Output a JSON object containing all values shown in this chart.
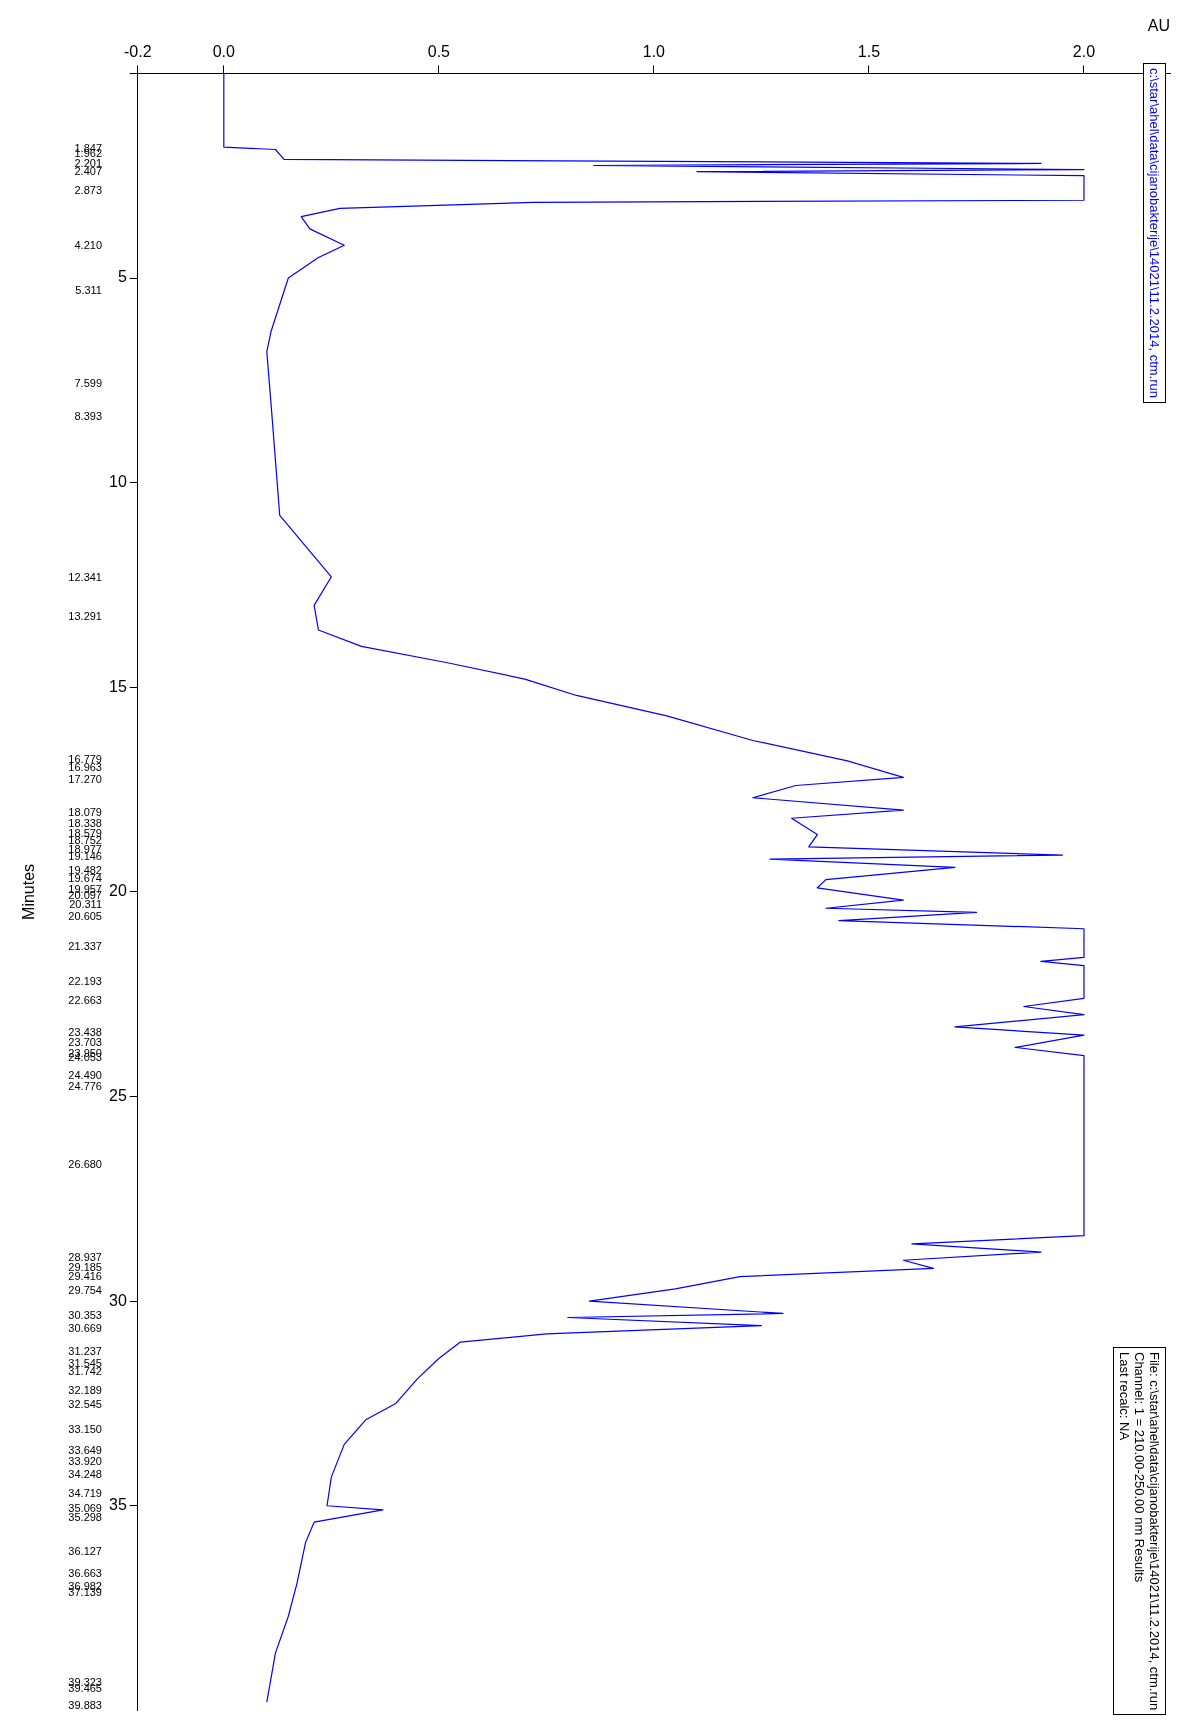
{
  "chart_data": {
    "type": "line",
    "xlabel": "AU",
    "y2label": "Minutes",
    "color": "#0000ff",
    "values": [
      0,
      1.8,
      1.86,
      2.1,
      2.2,
      2.25,
      2.35,
      2.4,
      2.5,
      3.1,
      3.15,
      3.3,
      3.5,
      3.8,
      4.2,
      4.5,
      5.0,
      6.3,
      6.8,
      8.1,
      10.8,
      11.3,
      12.3,
      13.0,
      13.6,
      14.0,
      14.4,
      14.8,
      15.2,
      15.7,
      16.3,
      16.8,
      17.2,
      17.4,
      17.7,
      18.0,
      18.2,
      18.6,
      18.9,
      19.1,
      19.2,
      19.4,
      19.7,
      19.9,
      20.2,
      20.4,
      20.5,
      20.7,
      20.9,
      21.6,
      21.7,
      21.8,
      22.6,
      22.8,
      23.0,
      23.3,
      23.5,
      23.8,
      24.0,
      28.4,
      28.6,
      28.8,
      29.0,
      29.2,
      29.4,
      29.7,
      30.0,
      30.3,
      30.4,
      30.6,
      30.8,
      31.0,
      31.4,
      31.9,
      32.5,
      32.9,
      33.5,
      34.3,
      35.0,
      35.1,
      35.4,
      35.9,
      36.4,
      36.9,
      37.7,
      38.6,
      39.8
    ],
    "x": [
      0,
      0,
      0.12,
      0.14,
      1.9,
      0.86,
      2.0,
      1.1,
      2.0,
      2.0,
      0.72,
      0.27,
      0.18,
      0.2,
      0.28,
      0.22,
      0.15,
      0.11,
      0.1,
      0.11,
      0.13,
      0.17,
      0.25,
      0.21,
      0.22,
      0.32,
      0.52,
      0.7,
      0.82,
      1.03,
      1.23,
      1.45,
      1.58,
      1.33,
      1.23,
      1.58,
      1.32,
      1.38,
      1.36,
      1.95,
      1.27,
      1.7,
      1.4,
      1.38,
      1.58,
      1.4,
      1.75,
      1.43,
      2.0,
      2.0,
      1.9,
      2.0,
      2.0,
      1.86,
      2.0,
      1.7,
      2.0,
      1.84,
      2.0,
      2.0,
      1.6,
      1.9,
      1.58,
      1.65,
      1.2,
      1.05,
      0.85,
      1.3,
      0.8,
      1.25,
      0.75,
      0.55,
      0.5,
      0.45,
      0.4,
      0.33,
      0.28,
      0.25,
      0.24,
      0.37,
      0.21,
      0.19,
      0.18,
      0.17,
      0.15,
      0.12,
      0.1
    ],
    "ylim": [
      40,
      0
    ],
    "yticks": [
      {
        "value": 0,
        "label": null
      },
      5,
      10,
      15,
      20,
      25,
      30,
      35
    ],
    "xlim": [
      -0.2,
      2.2
    ],
    "xticks": [
      -0.2,
      {
        "value": 0,
        "label": "0.0"
      },
      0.5,
      {
        "value": 1,
        "label": "1.0"
      },
      1.5,
      {
        "value": 2,
        "label": "2.0"
      }
    ],
    "grid": false,
    "legend": false,
    "marker": "none",
    "line_style": "solid",
    "annotations": [
      "c:\\star\\ahel\\data\\cijanobakterije\\14021\\11.2.2014, ctm.run",
      "File: c:\\star\\ahel\\data\\cijanobakterije\\14021\\11.2.2014, ctm.run",
      "Channel: 1 = 210.00-250.00 nm Results",
      "Last recalc: NA"
    ],
    "y2lim": [
      40,
      0
    ],
    "y2ticks": [
      {
        "value": 1.847,
        "label": "1.847"
      },
      {
        "value": 1.962,
        "label": "1.962"
      },
      {
        "value": 2.201,
        "label": "2.201"
      },
      {
        "value": 2.407,
        "label": "2.407"
      },
      {
        "value": 2.873,
        "label": "2.873"
      },
      {
        "value": 4.21,
        "label": "4.210"
      },
      {
        "value": 5.311,
        "label": "5.311"
      },
      {
        "value": 7.599,
        "label": "7.599"
      },
      {
        "value": 8.393,
        "label": "8.393"
      },
      {
        "value": 12.341,
        "label": "12.341"
      },
      {
        "value": 13.291,
        "label": "13.291"
      },
      {
        "value": 16.779,
        "label": "16.779"
      },
      {
        "value": 16.963,
        "label": "16.963"
      },
      {
        "value": 17.27,
        "label": "17.270"
      },
      {
        "value": 18.079,
        "label": "18.079"
      },
      {
        "value": 18.338,
        "label": "18.338"
      },
      {
        "value": 18.579,
        "label": "18.579"
      },
      {
        "value": 18.752,
        "label": "18.752"
      },
      {
        "value": 18.977,
        "label": "18.977"
      },
      {
        "value": 19.146,
        "label": "19.146"
      },
      {
        "value": 19.482,
        "label": "19.482"
      },
      {
        "value": 19.674,
        "label": "19.674"
      },
      {
        "value": 19.957,
        "label": "19.957"
      },
      {
        "value": 20.097,
        "label": "20.097"
      },
      {
        "value": 20.311,
        "label": "20.311"
      },
      {
        "value": 20.605,
        "label": "20.605"
      },
      {
        "value": 21.337,
        "label": "21.337"
      },
      {
        "value": 22.193,
        "label": "22.193"
      },
      {
        "value": 22.663,
        "label": "22.663"
      },
      {
        "value": 23.438,
        "label": "23.438"
      },
      {
        "value": 23.703,
        "label": "23.703"
      },
      {
        "value": 23.95,
        "label": "23.950"
      },
      {
        "value": 24.053,
        "label": "24.053"
      },
      {
        "value": 24.49,
        "label": "24.490"
      },
      {
        "value": 24.776,
        "label": "24.776"
      },
      {
        "value": 26.68,
        "label": "26.680"
      },
      {
        "value": 28.937,
        "label": "28.937"
      },
      {
        "value": 29.185,
        "label": "29.185"
      },
      {
        "value": 29.416,
        "label": "29.416"
      },
      {
        "value": 29.754,
        "label": "29.754"
      },
      {
        "value": 30.353,
        "label": "30.353"
      },
      {
        "value": 30.669,
        "label": "30.669"
      },
      {
        "value": 31.237,
        "label": "31.237"
      },
      {
        "value": 31.545,
        "label": "31.545"
      },
      {
        "value": 31.742,
        "label": "31.742"
      },
      {
        "value": 32.189,
        "label": "32.189"
      },
      {
        "value": 32.545,
        "label": "32.545"
      },
      {
        "value": 33.15,
        "label": "33.150"
      },
      {
        "value": 33.649,
        "label": "33.649"
      },
      {
        "value": 33.92,
        "label": "33.920"
      },
      {
        "value": 34.248,
        "label": "34.248"
      },
      {
        "value": 34.719,
        "label": "34.719"
      },
      {
        "value": 35.069,
        "label": "35.069"
      },
      {
        "value": 35.298,
        "label": "35.298"
      },
      {
        "value": 36.127,
        "label": "36.127"
      },
      {
        "value": 36.663,
        "label": "36.663"
      },
      {
        "value": 36.982,
        "label": "36.982"
      },
      {
        "value": 37.139,
        "label": "37.139"
      },
      {
        "value": 39.323,
        "label": "39.323"
      },
      {
        "value": 39.465,
        "label": "39.465"
      },
      {
        "value": 39.883,
        "label": "39.883"
      }
    ]
  }
}
